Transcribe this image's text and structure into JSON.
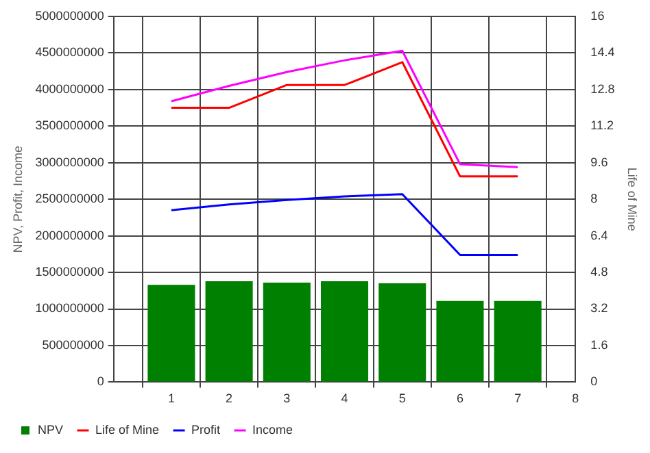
{
  "chart_data": {
    "type": "bar",
    "ylabel": "NPV, Profit, Income",
    "y2label": "Life of Mine",
    "x": [
      1,
      2,
      3,
      4,
      5,
      6,
      7
    ],
    "xlim": [
      0,
      8
    ],
    "xticks": [
      {
        "value": 0,
        "label": null
      },
      1,
      2,
      3,
      4,
      5,
      6,
      7,
      8
    ],
    "ylim": [
      0,
      5000000000
    ],
    "yticks": [
      0,
      500000000,
      1000000000,
      1500000000,
      2000000000,
      2500000000,
      3000000000,
      3500000000,
      4000000000,
      4500000000,
      5000000000
    ],
    "y2lim": [
      0,
      16
    ],
    "y2ticks": [
      0,
      1.6,
      3.2,
      4.8,
      6.4,
      8,
      9.6,
      11.2,
      12.8,
      14.4,
      16
    ],
    "grid": true,
    "legend": "bottom left",
    "marker": "none",
    "series": [
      {
        "name": "NPV",
        "color": "#008000",
        "values": [
          1330000000,
          1380000000,
          1360000000,
          1380000000,
          1350000000,
          1110000000,
          1110000000
        ]
      },
      {
        "name": "Life of Mine",
        "type": "line",
        "axis": "y2",
        "color": "#ff0000",
        "values": [
          12,
          12,
          13,
          13,
          14,
          9,
          9
        ]
      },
      {
        "name": "Profit",
        "type": "line",
        "color": "#0000ff",
        "values": [
          2350000000,
          2430000000,
          2490000000,
          2540000000,
          2570000000,
          1740000000,
          1740000000
        ]
      },
      {
        "name": "Income",
        "type": "line",
        "color": "#ff00ff",
        "values": [
          3840000000,
          4050000000,
          4240000000,
          4400000000,
          4530000000,
          2980000000,
          2940000000
        ]
      }
    ]
  }
}
